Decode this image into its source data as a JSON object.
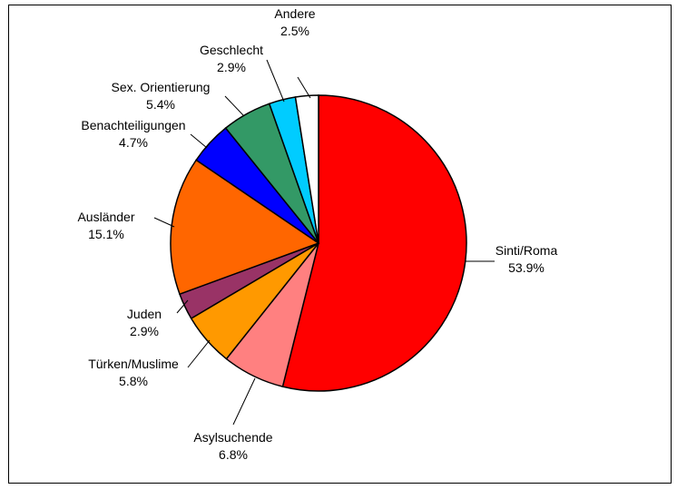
{
  "chart_data": {
    "type": "pie",
    "title": "",
    "start_angle_deg": 0,
    "direction": "clockwise",
    "slices": [
      {
        "label": "Sinti/Roma",
        "value": 53.9,
        "display": "53.9%",
        "color": "#ff0000"
      },
      {
        "label": "Asylsuchende",
        "value": 6.8,
        "display": "6.8%",
        "color": "#ff8080"
      },
      {
        "label": "Türken/Muslime",
        "value": 5.8,
        "display": "5.8%",
        "color": "#ff9900"
      },
      {
        "label": "Juden",
        "value": 2.9,
        "display": "2.9%",
        "color": "#993366"
      },
      {
        "label": "Ausländer",
        "value": 15.1,
        "display": "15.1%",
        "color": "#ff6600"
      },
      {
        "label": "Benachteiligungen",
        "value": 4.7,
        "display": "4.7%",
        "color": "#0000ff"
      },
      {
        "label": "Sex. Orientierung",
        "value": 5.4,
        "display": "5.4%",
        "color": "#339966"
      },
      {
        "label": "Geschlecht",
        "value": 2.9,
        "display": "2.9%",
        "color": "#00ccff"
      },
      {
        "label": "Andere",
        "value": 2.5,
        "display": "2.5%",
        "color": "#ffffff"
      }
    ]
  }
}
